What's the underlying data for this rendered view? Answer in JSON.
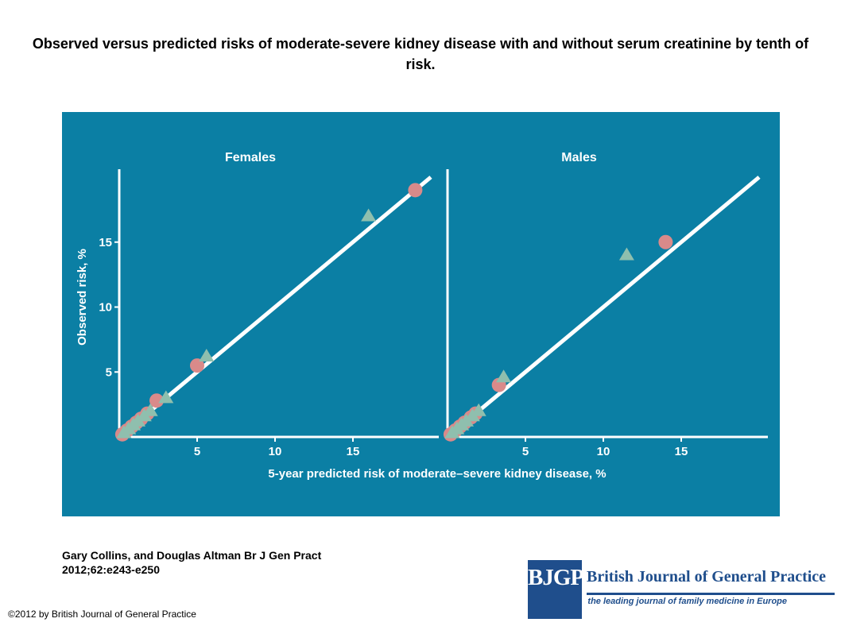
{
  "title": "Observed versus predicted risks of moderate-severe kidney disease with and without serum creatinine by tenth of risk.",
  "citation": "Gary Collins, and Douglas Altman Br J Gen Pract 2012;62:e243-e250",
  "copyright": "©2012 by British Journal of General Practice",
  "journal": {
    "logo_text": "BJGP",
    "name": "British Journal of General Practice",
    "tagline": "the leading journal of family medicine in Europe"
  },
  "colors": {
    "panel_bg": "#0b7fa4",
    "line": "#ffffff",
    "circle": "#d98a8a",
    "triangle": "#8fbfae",
    "logo_blue": "#1f4e8c"
  },
  "chart_data": [
    {
      "type": "scatter",
      "title": "Females",
      "xlabel": "5-year predicted risk of moderate–severe kidney disease, %",
      "ylabel": "Observed risk, %",
      "xlim": [
        0,
        20
      ],
      "ylim": [
        0,
        20
      ],
      "xticks": [
        5,
        10,
        15
      ],
      "yticks": [
        5,
        10,
        15
      ],
      "reference_line": [
        [
          0,
          0
        ],
        [
          20,
          20
        ]
      ],
      "grid": false,
      "series": [
        {
          "marker": "circle",
          "x": [
            0.2,
            0.5,
            0.8,
            1.1,
            1.4,
            1.8,
            2.4,
            5.0,
            19.0
          ],
          "y": [
            0.2,
            0.5,
            0.8,
            1.1,
            1.4,
            1.8,
            2.8,
            5.5,
            19.0
          ]
        },
        {
          "marker": "triangle",
          "x": [
            0.3,
            0.6,
            0.9,
            1.2,
            1.6,
            2.0,
            3.0,
            5.6,
            16.0
          ],
          "y": [
            0.3,
            0.6,
            0.9,
            1.2,
            1.6,
            2.0,
            3.0,
            6.2,
            17.0
          ]
        }
      ]
    },
    {
      "type": "scatter",
      "title": "Males",
      "xlabel": "5-year predicted risk of moderate–severe kidney disease, %",
      "ylabel": "",
      "xlim": [
        0,
        20
      ],
      "ylim": [
        0,
        20
      ],
      "xticks": [
        5,
        10,
        15
      ],
      "yticks": [],
      "reference_line": [
        [
          0,
          0
        ],
        [
          20,
          20
        ]
      ],
      "grid": false,
      "series": [
        {
          "marker": "circle",
          "x": [
            0.2,
            0.5,
            0.8,
            1.1,
            1.5,
            1.8,
            3.3,
            14.0
          ],
          "y": [
            0.2,
            0.5,
            0.8,
            1.1,
            1.5,
            1.8,
            4.0,
            15.0
          ]
        },
        {
          "marker": "triangle",
          "x": [
            0.3,
            0.6,
            0.9,
            1.2,
            1.6,
            2.0,
            3.6,
            11.5
          ],
          "y": [
            0.3,
            0.6,
            0.9,
            1.2,
            1.6,
            2.0,
            4.6,
            14.0
          ]
        }
      ]
    }
  ]
}
